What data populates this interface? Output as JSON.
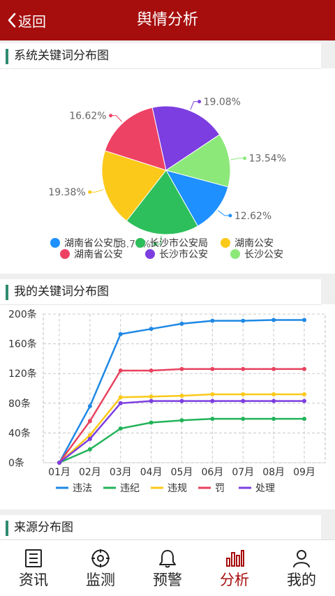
{
  "header": {
    "back_label": "返回",
    "title": "舆情分析"
  },
  "section1": {
    "title": "系统关键词分布图",
    "chart_data": {
      "type": "pie",
      "slices": [
        {
          "name": "湖南省公安厅",
          "value": 12.62,
          "label": "12.62%",
          "color": "#1e90ff"
        },
        {
          "name": "长沙市公安局",
          "value": 18.77,
          "label": "18.77%",
          "color": "#2dbf5b"
        },
        {
          "name": "湖南公安",
          "value": 19.38,
          "label": "19.38%",
          "color": "#fbc919"
        },
        {
          "name": "湖南省公安",
          "value": 16.62,
          "label": "16.62%",
          "color": "#ee4264"
        },
        {
          "name": "长沙市公安",
          "value": 19.08,
          "label": "19.08%",
          "color": "#7c3ee0"
        },
        {
          "name": "长沙公安",
          "value": 13.54,
          "label": "13.54%",
          "color": "#8de87a"
        }
      ],
      "legend_position": "bottom"
    }
  },
  "section2": {
    "title": "我的关键词分布图",
    "chart_data": {
      "type": "line",
      "x": [
        "01月",
        "02月",
        "03月",
        "04月",
        "05月",
        "06月",
        "07月",
        "08月",
        "09月"
      ],
      "ytick_labels": [
        "0条",
        "40条",
        "80条",
        "120条",
        "160条",
        "200条"
      ],
      "ylim": [
        0,
        200
      ],
      "grid": true,
      "legend_position": "bottom",
      "series": [
        {
          "name": "违法",
          "color": "#1e88e5",
          "values": [
            0,
            76,
            173,
            180,
            187,
            191,
            191,
            192,
            192
          ]
        },
        {
          "name": "违纪",
          "color": "#22b35a",
          "values": [
            0,
            18,
            46,
            54,
            57,
            59,
            59,
            59,
            59
          ]
        },
        {
          "name": "违规",
          "color": "#fbc919",
          "values": [
            0,
            37,
            88,
            89,
            90,
            92,
            92,
            92,
            92
          ]
        },
        {
          "name": "罚",
          "color": "#e8425e",
          "values": [
            0,
            56,
            124,
            124,
            126,
            126,
            126,
            126,
            126
          ]
        },
        {
          "name": "处理",
          "color": "#7c3ee0",
          "values": [
            0,
            32,
            80,
            83,
            83,
            83,
            83,
            83,
            83
          ]
        }
      ]
    }
  },
  "section3": {
    "title": "来源分布图"
  },
  "tabbar": {
    "tabs": [
      {
        "label": "资讯",
        "icon": "news-icon"
      },
      {
        "label": "监测",
        "icon": "monitor-icon"
      },
      {
        "label": "预警",
        "icon": "bell-icon"
      },
      {
        "label": "分析",
        "icon": "bar-chart-icon",
        "active": true
      },
      {
        "label": "我的",
        "icon": "user-icon"
      }
    ],
    "active_color": "#a60d0d"
  }
}
